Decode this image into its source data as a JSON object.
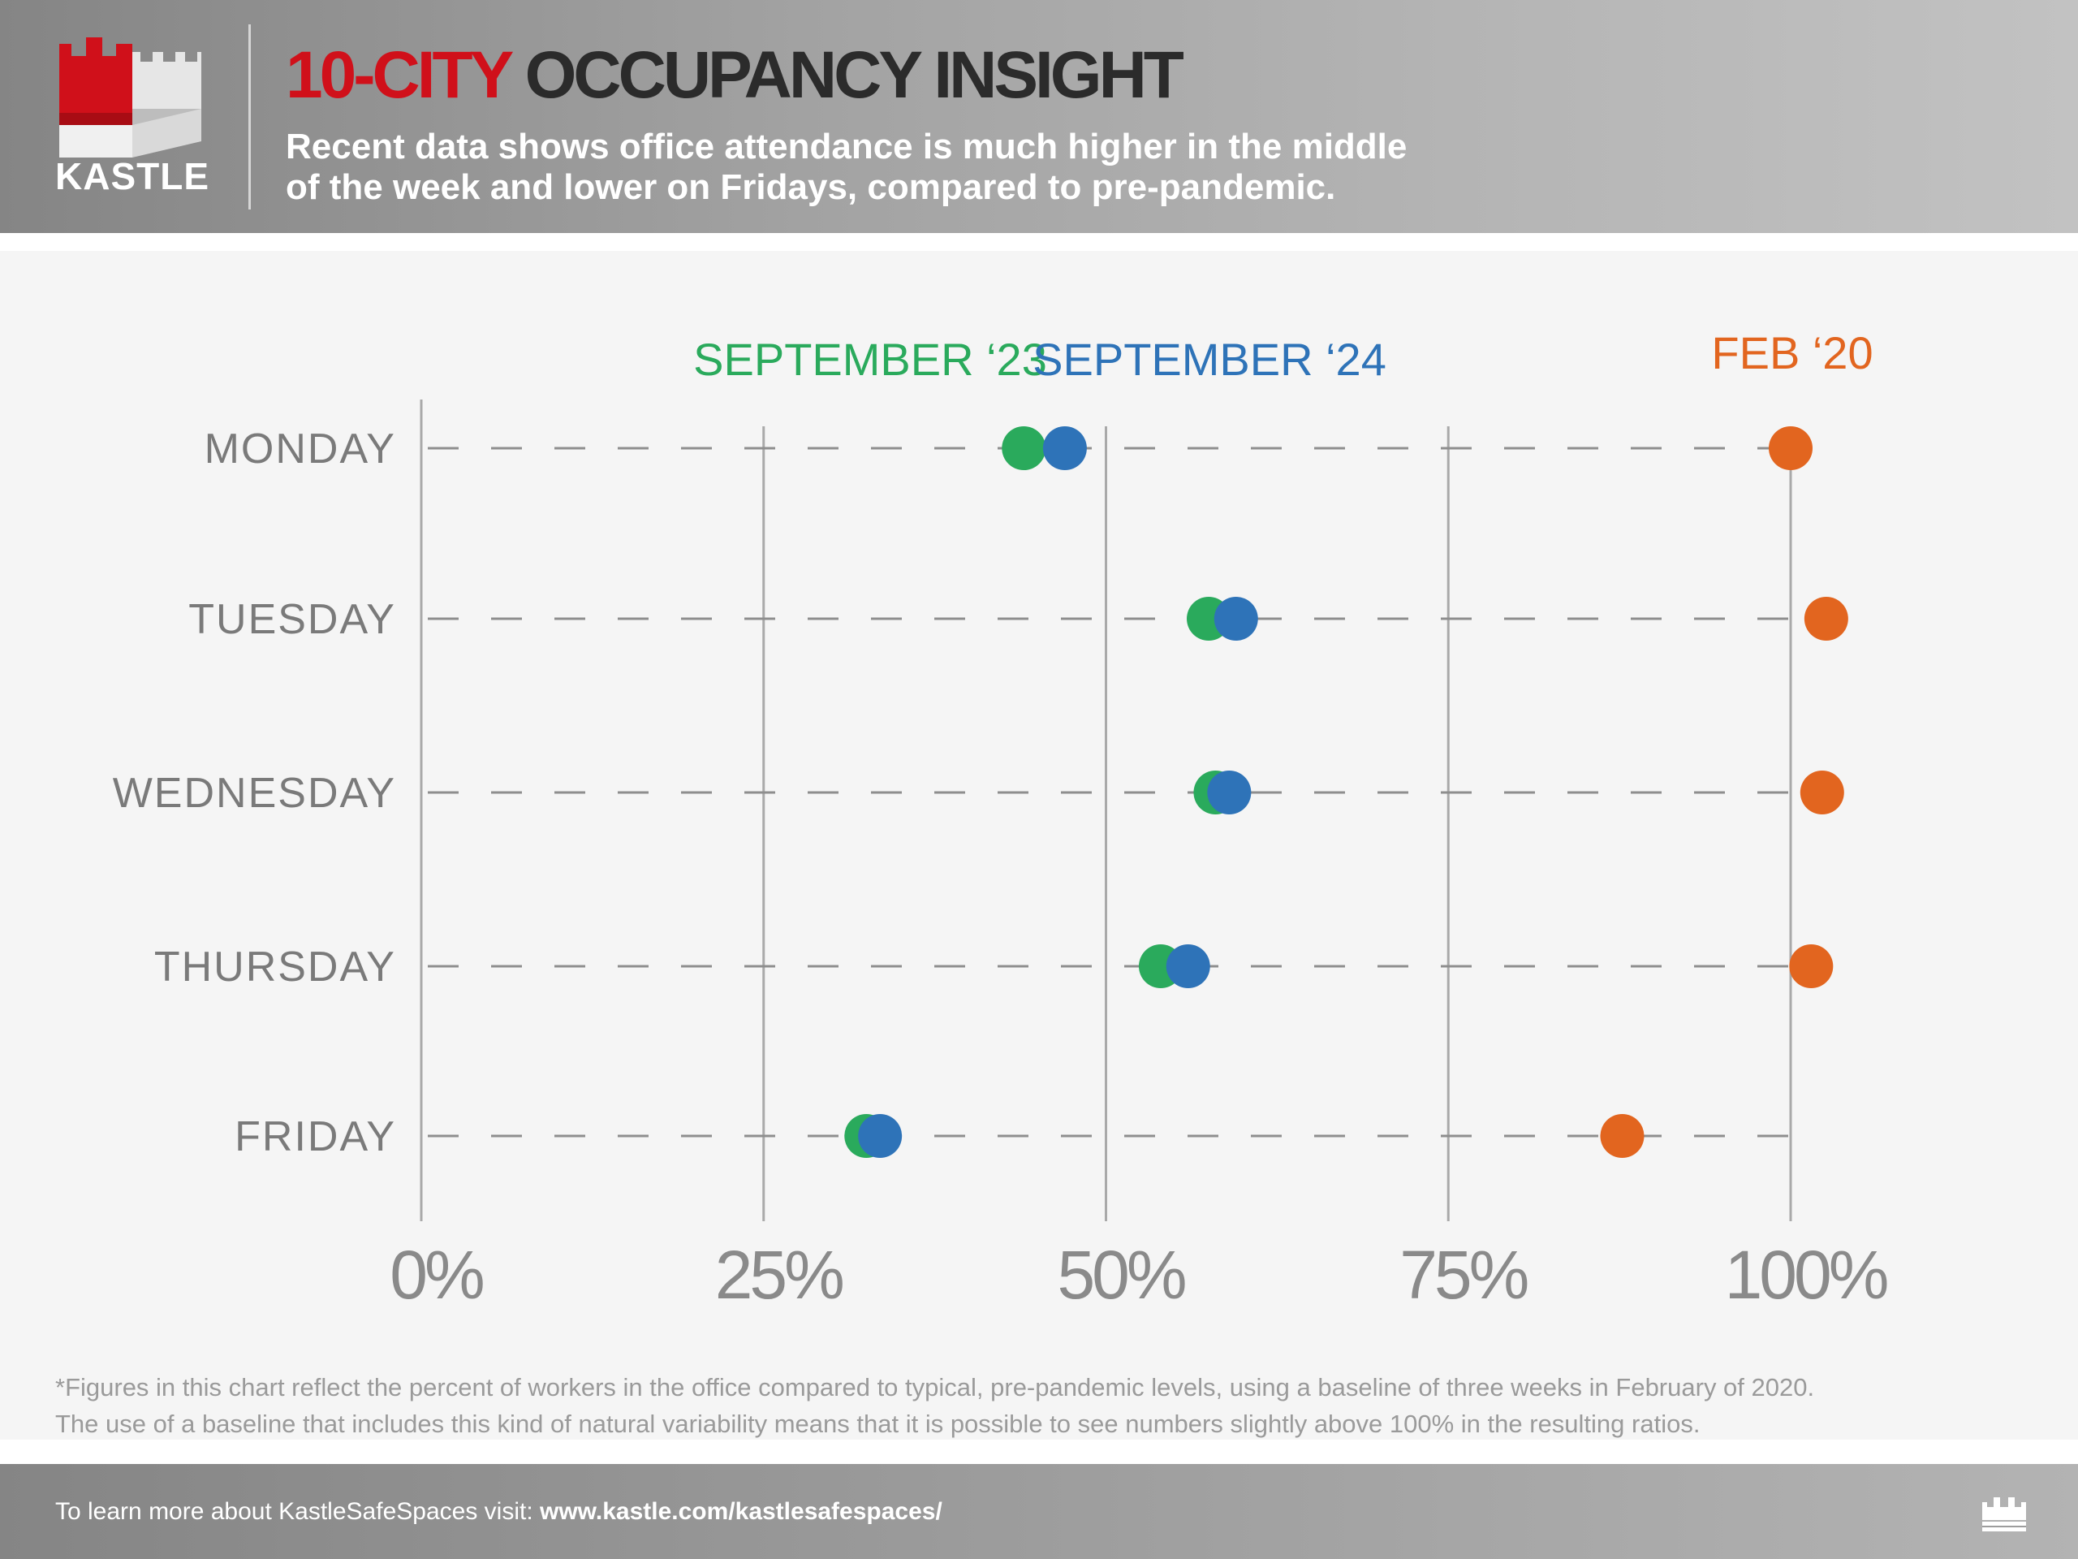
{
  "brand": {
    "logo_text": "KASTLE",
    "red": "#d0101a",
    "dark": "#2b2b2b"
  },
  "header": {
    "title_red": "10-CITY",
    "title_dark": "OCCUPANCY INSIGHT",
    "subtitle_line1": "Recent data shows office attendance is much higher in the middle",
    "subtitle_line2": "of the week and lower on Fridays, compared to pre-pandemic."
  },
  "chart_data": {
    "type": "scatter",
    "orientation": "horizontal-dot-plot",
    "categories": [
      "MONDAY",
      "TUESDAY",
      "WEDNESDAY",
      "THURSDAY",
      "FRIDAY"
    ],
    "series": [
      {
        "name": "SEPTEMBER ‘23",
        "color": "#2aaa5c",
        "values": [
          44,
          57.5,
          58,
          54,
          32.5
        ]
      },
      {
        "name": "SEPTEMBER ‘24",
        "color": "#2e73b8",
        "values": [
          47,
          59.5,
          59,
          56,
          33.5
        ]
      },
      {
        "name": "FEB ‘20",
        "color": "#e2651f",
        "values": [
          100,
          102.6,
          102.3,
          101.5,
          87.7
        ]
      }
    ],
    "x_ticks": [
      "0%",
      "25%",
      "50%",
      "75%",
      "100%"
    ],
    "x_tick_values": [
      0,
      25,
      50,
      75,
      100
    ],
    "xlim": [
      0,
      100
    ],
    "grid": true,
    "dashed_row_guides": true,
    "legend_placement": "top"
  },
  "footnote": {
    "line1": "*Figures in this chart reflect the percent of workers in the office compared to typical, pre-pandemic levels, using a baseline of three weeks in February of 2020.",
    "line2": "The use of a baseline that includes this kind of natural variability means that it is possible to see numbers slightly above 100% in the resulting ratios."
  },
  "footer": {
    "lead": "To learn more about KastleSafeSpaces visit: ",
    "link": "www.kastle.com/kastlesafespaces/",
    "icon": "castle-icon"
  }
}
